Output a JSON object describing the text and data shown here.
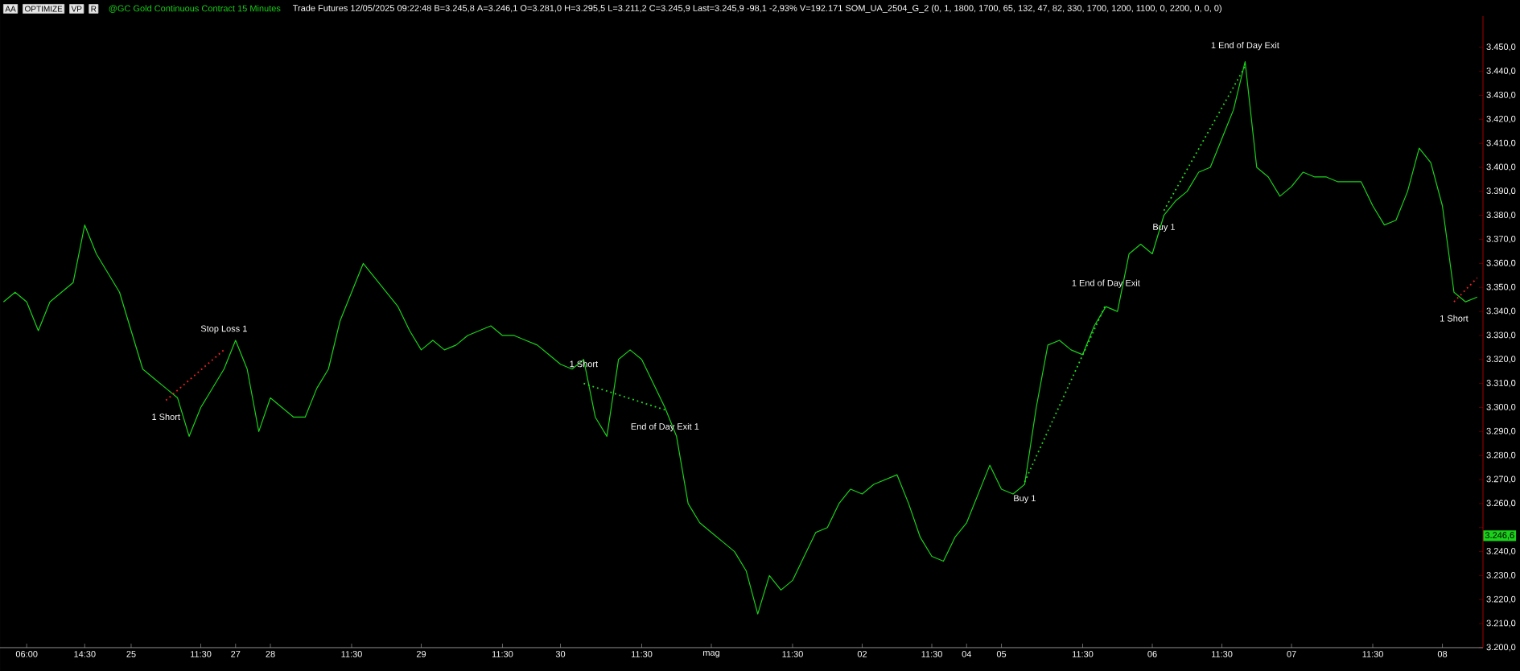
{
  "chart_data": {
    "type": "line",
    "title": "@GC Gold Continuous Contract 15 Minutes",
    "subtitle": "Trade Futures 12/05/2025 09:22:48 B=3.245,8 A=3.246,1 O=3.281,0 H=3.295,5 L=3.211,2 C=3.245,9 Last=3.245,9 -98,1 -2,93% V=192.171 SOM_UA_2504_G_2 (0, 1, 1800, 1700, 65, 132, 47, 82, 330, 1700, 1200, 1100, 0, 2200, 0, 0, 0)",
    "annotations": [
      {
        "text": "AA"
      },
      {
        "text": "OPTIMIZE"
      },
      {
        "text": "VP"
      },
      {
        "text": "R"
      },
      {
        "text": "3.246,6",
        "y": 3246.6
      },
      "1 Short",
      "Stop Loss 1",
      "1 Short",
      "End of Day Exit 1",
      "Buy 1",
      "1 End of Day Exit",
      "Buy 1",
      "1 End of Day Exit",
      "1 Short"
    ],
    "categories": [
      null,
      null,
      "06:00",
      null,
      null,
      null,
      null,
      "14:30",
      null,
      null,
      null,
      "25",
      null,
      null,
      null,
      null,
      null,
      "11:30",
      null,
      null,
      "27",
      null,
      null,
      "28",
      null,
      null,
      null,
      null,
      null,
      null,
      "11:30",
      null,
      null,
      null,
      null,
      null,
      "29",
      null,
      null,
      null,
      null,
      null,
      null,
      "11:30",
      null,
      null,
      null,
      null,
      "30",
      null,
      null,
      null,
      null,
      null,
      null,
      "11:30",
      null,
      null,
      null,
      null,
      null,
      "mag",
      null,
      null,
      null,
      null,
      null,
      null,
      "11:30",
      null,
      null,
      null,
      null,
      null,
      "02",
      null,
      null,
      null,
      null,
      null,
      "11:30",
      null,
      null,
      "04",
      null,
      null,
      "05",
      null,
      null,
      null,
      null,
      null,
      null,
      "11:30",
      null,
      null,
      null,
      null,
      null,
      "06",
      null,
      null,
      null,
      null,
      null,
      "11:30",
      null,
      null,
      null,
      null,
      null,
      "07",
      null,
      null,
      null,
      null,
      null,
      null,
      "11:30",
      null,
      null,
      null,
      null,
      null,
      "08",
      null,
      null,
      null
    ],
    "series": [
      {
        "color": "#19d219",
        "values": [
          3344,
          3348,
          3344,
          3332,
          3344,
          3348,
          3352,
          3376,
          3364,
          3356,
          3348,
          3332,
          3316,
          3312,
          3308,
          3304,
          3288,
          3300,
          3308,
          3316,
          3328,
          3316,
          3290,
          3304,
          3300,
          3296,
          3296,
          3308,
          3316,
          3336,
          3348,
          3360,
          3354,
          3348,
          3342,
          3332,
          3324,
          3328,
          3324,
          3326,
          3330,
          3332,
          3334,
          3330,
          3330,
          3328,
          3326,
          3322,
          3318,
          3316,
          3320,
          3296,
          3288,
          3320,
          3324,
          3320,
          3310,
          3300,
          3288,
          3260,
          3252,
          3248,
          3244,
          3240,
          3232,
          3214,
          3230,
          3224,
          3228,
          3238,
          3248,
          3250,
          3260,
          3266,
          3264,
          3268,
          3270,
          3272,
          3260,
          3246,
          3238,
          3236,
          3246,
          3252,
          3264,
          3276,
          3266,
          3264,
          3268,
          3300,
          3326,
          3328,
          3324,
          3322,
          3334,
          3342,
          3340,
          3364,
          3368,
          3364,
          3380,
          3386,
          3390,
          3398,
          3400,
          3412,
          3424,
          3444,
          3400,
          3396,
          3388,
          3392,
          3398,
          3396,
          3396,
          3394,
          3394,
          3394,
          3384,
          3376,
          3378,
          3390,
          3408,
          3402,
          3384,
          3348,
          3344,
          3346
        ]
      },
      {
        "color": "#ff2020",
        "line_style": "dotted",
        "values": [
          null,
          null,
          null,
          null,
          null,
          null,
          null,
          null,
          null,
          null,
          null,
          null,
          null,
          null,
          3303,
          null,
          null,
          null,
          null,
          3324,
          null,
          null,
          null,
          null,
          null,
          null,
          null,
          null,
          null,
          null,
          null,
          null,
          null,
          null,
          null,
          null,
          null,
          null,
          null,
          null,
          null,
          null,
          null,
          null,
          null,
          null,
          null,
          null,
          null,
          null,
          null,
          null,
          null,
          null,
          null,
          null,
          null,
          null,
          null,
          null,
          null,
          null,
          null,
          null,
          null,
          null,
          null,
          null,
          null,
          null,
          null,
          null,
          null,
          null,
          null,
          null,
          null,
          null,
          null,
          null,
          null,
          null,
          null,
          null,
          null,
          null,
          null,
          null,
          null,
          null,
          null,
          null,
          null,
          null,
          null,
          null,
          null,
          null,
          null,
          null,
          null,
          null,
          null,
          null,
          null,
          null,
          null,
          null,
          null,
          null,
          null,
          null,
          null,
          null,
          null,
          null,
          null,
          null,
          null,
          null,
          null,
          null,
          null,
          null,
          null,
          null,
          null,
          null
        ]
      },
      {
        "color": "#20e020",
        "line_style": "dotted",
        "values": [
          null,
          null,
          null,
          null,
          null,
          null,
          null,
          null,
          null,
          null,
          null,
          null,
          null,
          null,
          null,
          null,
          null,
          null,
          null,
          null,
          null,
          null,
          null,
          null,
          null,
          null,
          null,
          null,
          null,
          null,
          null,
          null,
          null,
          null,
          null,
          null,
          null,
          null,
          null,
          null,
          null,
          null,
          null,
          null,
          null,
          null,
          null,
          null,
          null,
          null,
          3310,
          null,
          null,
          null,
          null,
          null,
          null,
          3299,
          null,
          null,
          null,
          null,
          null,
          null,
          null,
          null,
          null,
          null,
          null,
          null,
          null,
          null,
          null,
          null,
          null,
          null,
          null,
          null,
          null,
          null,
          null,
          null,
          null,
          null,
          null,
          null,
          null,
          null,
          null,
          null,
          null,
          null,
          null,
          null,
          null,
          null,
          null,
          null,
          null,
          null,
          null,
          null,
          null,
          null,
          null,
          null,
          null,
          null,
          null,
          null,
          null,
          null,
          null,
          null,
          null,
          null,
          null,
          null,
          null,
          null,
          null,
          null,
          null,
          null,
          null,
          null,
          null,
          null
        ]
      },
      {
        "color": "#20e020",
        "line_style": "dotted",
        "values": [
          null,
          null,
          null,
          null,
          null,
          null,
          null,
          null,
          null,
          null,
          null,
          null,
          null,
          null,
          null,
          null,
          null,
          null,
          null,
          null,
          null,
          null,
          null,
          null,
          null,
          null,
          null,
          null,
          null,
          null,
          null,
          null,
          null,
          null,
          null,
          null,
          null,
          null,
          null,
          null,
          null,
          null,
          null,
          null,
          null,
          null,
          null,
          null,
          null,
          null,
          null,
          null,
          null,
          null,
          null,
          null,
          null,
          null,
          null,
          null,
          null,
          null,
          null,
          null,
          null,
          null,
          null,
          null,
          null,
          null,
          null,
          null,
          null,
          null,
          null,
          null,
          null,
          null,
          null,
          null,
          null,
          null,
          null,
          null,
          null,
          null,
          null,
          null,
          3269,
          null,
          null,
          null,
          null,
          null,
          null,
          3343,
          null,
          null,
          null,
          null,
          null,
          null,
          null,
          null,
          null,
          null,
          null,
          null,
          null,
          null,
          null,
          null,
          null,
          null,
          null,
          null,
          null,
          null,
          null,
          null,
          null,
          null,
          null,
          null,
          null,
          null,
          null,
          null
        ]
      },
      {
        "color": "#20e020",
        "line_style": "dotted",
        "values": [
          null,
          null,
          null,
          null,
          null,
          null,
          null,
          null,
          null,
          null,
          null,
          null,
          null,
          null,
          null,
          null,
          null,
          null,
          null,
          null,
          null,
          null,
          null,
          null,
          null,
          null,
          null,
          null,
          null,
          null,
          null,
          null,
          null,
          null,
          null,
          null,
          null,
          null,
          null,
          null,
          null,
          null,
          null,
          null,
          null,
          null,
          null,
          null,
          null,
          null,
          null,
          null,
          null,
          null,
          null,
          null,
          null,
          null,
          null,
          null,
          null,
          null,
          null,
          null,
          null,
          null,
          null,
          null,
          null,
          null,
          null,
          null,
          null,
          null,
          null,
          null,
          null,
          null,
          null,
          null,
          null,
          null,
          null,
          null,
          null,
          null,
          null,
          null,
          null,
          null,
          null,
          null,
          null,
          null,
          null,
          null,
          null,
          null,
          null,
          null,
          3382,
          null,
          null,
          null,
          null,
          null,
          null,
          3442,
          null,
          null,
          null,
          null,
          null,
          null,
          null,
          null,
          null,
          null,
          null,
          null,
          null,
          null,
          null,
          null,
          null,
          null,
          null,
          null
        ]
      },
      {
        "color": "#ff2020",
        "line_style": "dotted",
        "values": [
          null,
          null,
          null,
          null,
          null,
          null,
          null,
          null,
          null,
          null,
          null,
          null,
          null,
          null,
          null,
          null,
          null,
          null,
          null,
          null,
          null,
          null,
          null,
          null,
          null,
          null,
          null,
          null,
          null,
          null,
          null,
          null,
          null,
          null,
          null,
          null,
          null,
          null,
          null,
          null,
          null,
          null,
          null,
          null,
          null,
          null,
          null,
          null,
          null,
          null,
          null,
          null,
          null,
          null,
          null,
          null,
          null,
          null,
          null,
          null,
          null,
          null,
          null,
          null,
          null,
          null,
          null,
          null,
          null,
          null,
          null,
          null,
          null,
          null,
          null,
          null,
          null,
          null,
          null,
          null,
          null,
          null,
          null,
          null,
          null,
          null,
          null,
          null,
          null,
          null,
          null,
          null,
          null,
          null,
          null,
          null,
          null,
          null,
          null,
          null,
          null,
          null,
          null,
          null,
          null,
          null,
          null,
          null,
          null,
          null,
          null,
          null,
          null,
          null,
          null,
          null,
          null,
          null,
          null,
          null,
          null,
          null,
          null,
          null,
          null,
          3344,
          null,
          3354
        ]
      }
    ],
    "ylim": [
      3200,
      3463
    ],
    "yticks": [
      {
        "value": 3200,
        "label": "3.200,0"
      },
      {
        "value": 3210,
        "label": "3.210,0"
      },
      {
        "value": 3220,
        "label": "3.220,0"
      },
      {
        "value": 3230,
        "label": "3.230,0"
      },
      {
        "value": 3240,
        "label": "3.240,0"
      },
      {
        "value": 3250,
        "label": null
      },
      {
        "value": 3260,
        "label": "3.260,0"
      },
      {
        "value": 3270,
        "label": "3.270,0"
      },
      {
        "value": 3280,
        "label": "3.280,0"
      },
      {
        "value": 3290,
        "label": "3.290,0"
      },
      {
        "value": 3300,
        "label": "3.300,0"
      },
      {
        "value": 3310,
        "label": "3.310,0"
      },
      {
        "value": 3320,
        "label": "3.320,0"
      },
      {
        "value": 3330,
        "label": "3.330,0"
      },
      {
        "value": 3340,
        "label": "3.340,0"
      },
      {
        "value": 3350,
        "label": "3.350,0"
      },
      {
        "value": 3360,
        "label": "3.360,0"
      },
      {
        "value": 3370,
        "label": "3.370,0"
      },
      {
        "value": 3380,
        "label": "3.380,0"
      },
      {
        "value": 3390,
        "label": "3.390,0"
      },
      {
        "value": 3400,
        "label": "3.400,0"
      },
      {
        "value": 3410,
        "label": "3.410,0"
      },
      {
        "value": 3420,
        "label": "3.420,0"
      },
      {
        "value": 3430,
        "label": "3.430,0"
      },
      {
        "value": 3440,
        "label": "3.440,0"
      },
      {
        "value": 3450,
        "label": "3.450,0"
      }
    ]
  }
}
